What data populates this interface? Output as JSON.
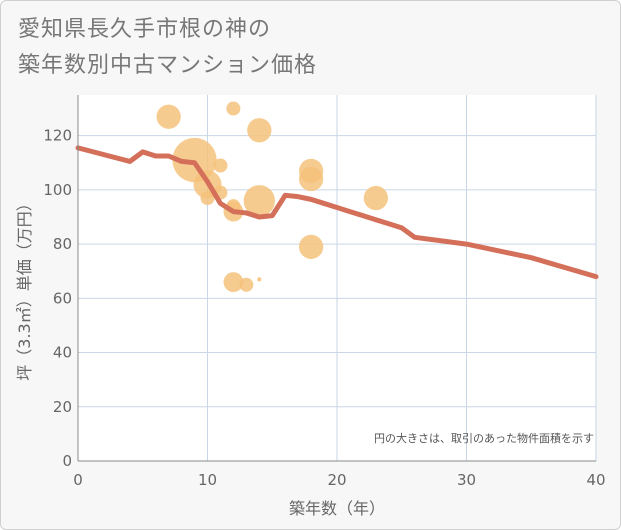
{
  "chart_data": {
    "type": "scatter",
    "title_lines": [
      "愛知県長久手市根の神の",
      "築年数別中古マンション価格"
    ],
    "xlabel": "築年数（年）",
    "ylabel": "坪（3.3㎡）単価（万円）",
    "xlim": [
      0,
      40
    ],
    "ylim": [
      0,
      135
    ],
    "xticks": [
      0,
      10,
      20,
      30,
      40
    ],
    "yticks": [
      0,
      20,
      40,
      60,
      80,
      100,
      120
    ],
    "grid": true,
    "note": "円の大きさは、取引のあった物件面積を示す",
    "bubbles": [
      {
        "x": 7,
        "y": 127,
        "size": 3
      },
      {
        "x": 9,
        "y": 111,
        "size": 10
      },
      {
        "x": 10,
        "y": 102,
        "size": 4
      },
      {
        "x": 10,
        "y": 97,
        "size": 1
      },
      {
        "x": 11,
        "y": 109,
        "size": 1
      },
      {
        "x": 11,
        "y": 99,
        "size": 1
      },
      {
        "x": 12,
        "y": 130,
        "size": 1
      },
      {
        "x": 12,
        "y": 94,
        "size": 1
      },
      {
        "x": 12,
        "y": 92,
        "size": 2
      },
      {
        "x": 12,
        "y": 66,
        "size": 2
      },
      {
        "x": 13,
        "y": 65,
        "size": 1
      },
      {
        "x": 14,
        "y": 122,
        "size": 3
      },
      {
        "x": 14,
        "y": 96,
        "size": 5
      },
      {
        "x": 14,
        "y": 67,
        "size": 0.1
      },
      {
        "x": 18,
        "y": 107,
        "size": 3
      },
      {
        "x": 18,
        "y": 104,
        "size": 3
      },
      {
        "x": 18,
        "y": 79,
        "size": 3
      },
      {
        "x": 23,
        "y": 97,
        "size": 3
      }
    ],
    "trend": {
      "x": [
        0,
        4,
        5,
        6,
        7,
        8,
        9,
        10,
        11,
        12,
        13,
        14,
        15,
        16,
        17,
        18,
        19,
        20,
        21,
        22,
        23,
        24,
        25,
        26,
        30,
        35,
        40
      ],
      "y": [
        115.5,
        110.5,
        114,
        112.5,
        112.5,
        110.5,
        110,
        103,
        95,
        92,
        91.5,
        90,
        90.5,
        98,
        97.5,
        96.5,
        95,
        93.5,
        92,
        90.5,
        89,
        87.5,
        86,
        82.5,
        80,
        75,
        68
      ]
    },
    "colors": {
      "bubble": "#f5c27b",
      "trend": "#d4705a",
      "grid": "#c9d6e6",
      "background": "#f7f7f7",
      "plot_background": "#ffffff"
    }
  }
}
